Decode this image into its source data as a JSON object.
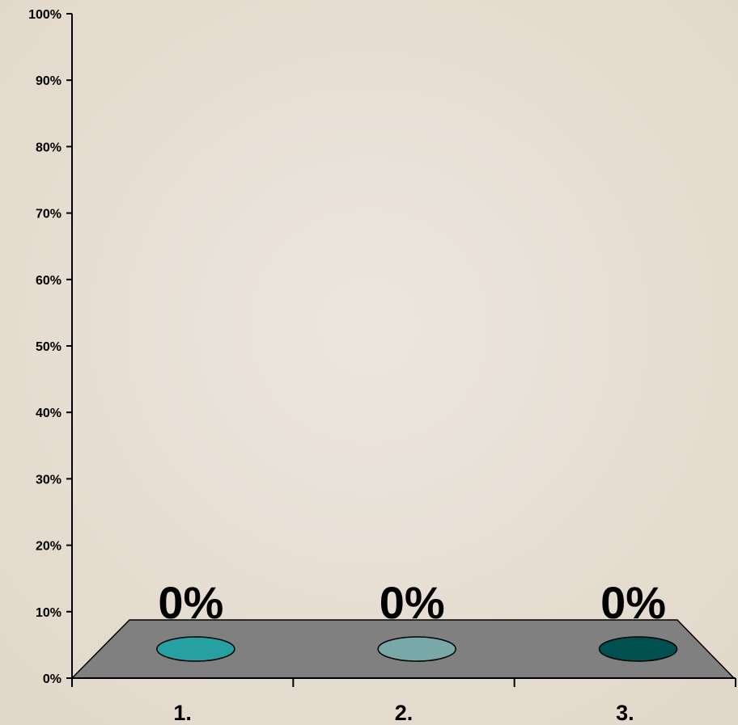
{
  "chart_data": {
    "type": "bar",
    "categories": [
      "1.",
      "2.",
      "3."
    ],
    "values": [
      0,
      0,
      0
    ],
    "data_labels": [
      "0%",
      "0%",
      "0%"
    ],
    "y_ticks": [
      "0%",
      "10%",
      "20%",
      "30%",
      "40%",
      "50%",
      "60%",
      "70%",
      "80%",
      "90%",
      "100%"
    ],
    "ylim": [
      0,
      100
    ],
    "grid": false,
    "legend": "none",
    "colors": [
      "#26a0a0",
      "#78a8a8",
      "#005050"
    ],
    "floor_color": "#808080",
    "background": "#e8e0d4"
  }
}
